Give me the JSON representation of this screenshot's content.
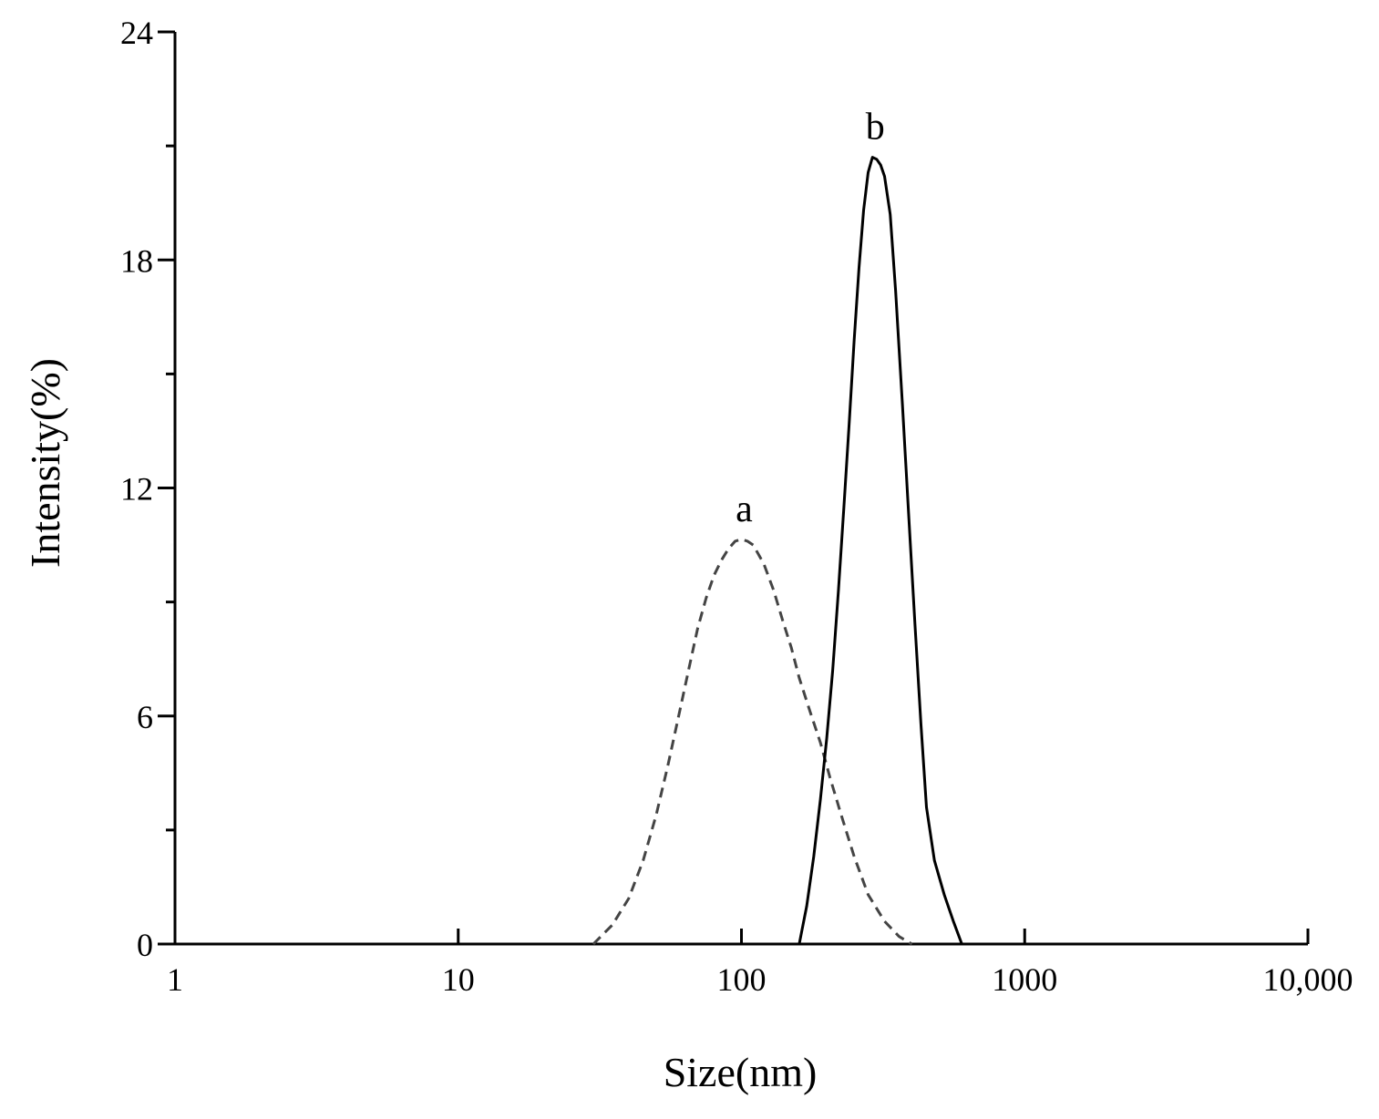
{
  "chart_data": {
    "type": "line",
    "xlabel": "Size(nm)",
    "ylabel": "Intensity(%)",
    "xscale": "log",
    "xlim": [
      1,
      10000
    ],
    "ylim": [
      0,
      24
    ],
    "x_ticks": [
      {
        "value": 1,
        "label": "1"
      },
      {
        "value": 10,
        "label": "10"
      },
      {
        "value": 100,
        "label": "100"
      },
      {
        "value": 1000,
        "label": "1000"
      },
      {
        "value": 10000,
        "label": "10,000"
      }
    ],
    "y_ticks": [
      {
        "value": 0,
        "label": "0"
      },
      {
        "value": 6,
        "label": "6"
      },
      {
        "value": 12,
        "label": "12"
      },
      {
        "value": 18,
        "label": "18"
      },
      {
        "value": 24,
        "label": "24"
      }
    ],
    "y_minor_ticks": [
      3,
      9,
      15,
      21
    ],
    "grid": false,
    "legend": "none",
    "series": [
      {
        "label": "a",
        "style": "dashed",
        "color": "#444444",
        "points": [
          [
            30,
            0.0
          ],
          [
            35,
            0.5
          ],
          [
            40,
            1.2
          ],
          [
            45,
            2.2
          ],
          [
            50,
            3.4
          ],
          [
            55,
            4.7
          ],
          [
            60,
            6.0
          ],
          [
            65,
            7.2
          ],
          [
            70,
            8.3
          ],
          [
            75,
            9.1
          ],
          [
            80,
            9.7
          ],
          [
            85,
            10.1
          ],
          [
            90,
            10.4
          ],
          [
            95,
            10.6
          ],
          [
            100,
            10.65
          ],
          [
            105,
            10.6
          ],
          [
            110,
            10.5
          ],
          [
            120,
            10.0
          ],
          [
            130,
            9.3
          ],
          [
            140,
            8.5
          ],
          [
            150,
            7.8
          ],
          [
            160,
            7.0
          ],
          [
            175,
            6.1
          ],
          [
            190,
            5.3
          ],
          [
            205,
            4.4
          ],
          [
            225,
            3.4
          ],
          [
            250,
            2.3
          ],
          [
            280,
            1.3
          ],
          [
            320,
            0.6
          ],
          [
            360,
            0.2
          ],
          [
            400,
            0.0
          ]
        ]
      },
      {
        "label": "b",
        "style": "solid",
        "color": "#000000",
        "points": [
          [
            160,
            0.0
          ],
          [
            170,
            1.0
          ],
          [
            180,
            2.3
          ],
          [
            190,
            3.8
          ],
          [
            200,
            5.4
          ],
          [
            210,
            7.2
          ],
          [
            220,
            9.3
          ],
          [
            230,
            11.5
          ],
          [
            240,
            13.7
          ],
          [
            250,
            15.9
          ],
          [
            260,
            17.8
          ],
          [
            270,
            19.3
          ],
          [
            280,
            20.3
          ],
          [
            290,
            20.7
          ],
          [
            300,
            20.65
          ],
          [
            310,
            20.5
          ],
          [
            320,
            20.2
          ],
          [
            335,
            19.2
          ],
          [
            350,
            17.2
          ],
          [
            370,
            14.2
          ],
          [
            390,
            11.2
          ],
          [
            410,
            8.4
          ],
          [
            430,
            5.8
          ],
          [
            450,
            3.6
          ],
          [
            480,
            2.2
          ],
          [
            520,
            1.3
          ],
          [
            560,
            0.6
          ],
          [
            600,
            0.0
          ]
        ]
      }
    ]
  }
}
